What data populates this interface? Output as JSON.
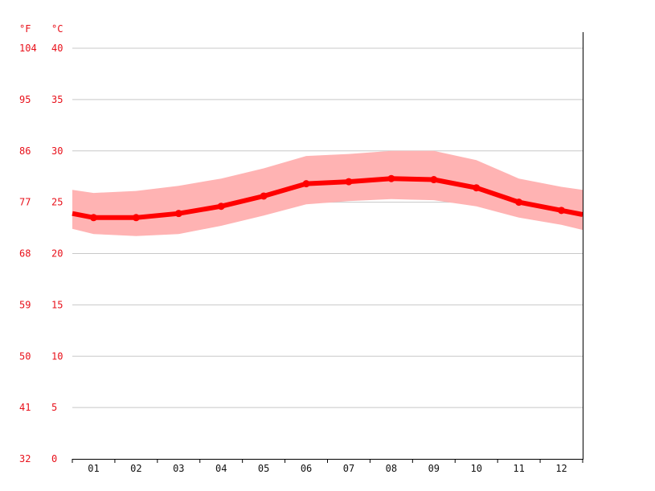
{
  "chart_data": {
    "type": "line",
    "title": "",
    "xlabel": "",
    "ylabel": "",
    "units": {
      "left": "°F",
      "right": "°C"
    },
    "categories": [
      "01",
      "02",
      "03",
      "04",
      "05",
      "06",
      "07",
      "08",
      "09",
      "10",
      "11",
      "12"
    ],
    "ylim": [
      0,
      40
    ],
    "yticks_c": [
      0,
      5,
      10,
      15,
      20,
      25,
      30,
      35,
      40
    ],
    "yticks_f": [
      32,
      41,
      50,
      59,
      68,
      77,
      86,
      95,
      104
    ],
    "grid": true,
    "series": [
      {
        "values": [
          23.5,
          23.5,
          23.9,
          24.6,
          25.6,
          26.8,
          27.0,
          27.3,
          27.2,
          26.4,
          25.0,
          24.2
        ],
        "start_value": 23.9,
        "end_value": 23.8
      }
    ],
    "band": {
      "upper": [
        25.9,
        26.1,
        26.6,
        27.3,
        28.3,
        29.5,
        29.7,
        30.0,
        30.0,
        29.1,
        27.3,
        26.5
      ],
      "lower": [
        21.9,
        21.7,
        21.9,
        22.7,
        23.7,
        24.8,
        25.1,
        25.3,
        25.2,
        24.6,
        23.5,
        22.8
      ],
      "upper_start": 26.2,
      "upper_end": 26.2,
      "lower_start": 22.4,
      "lower_end": 22.3
    },
    "colors": {
      "line": "#ff0000",
      "band": "#ffb3b3",
      "label": "#e8101a"
    }
  }
}
